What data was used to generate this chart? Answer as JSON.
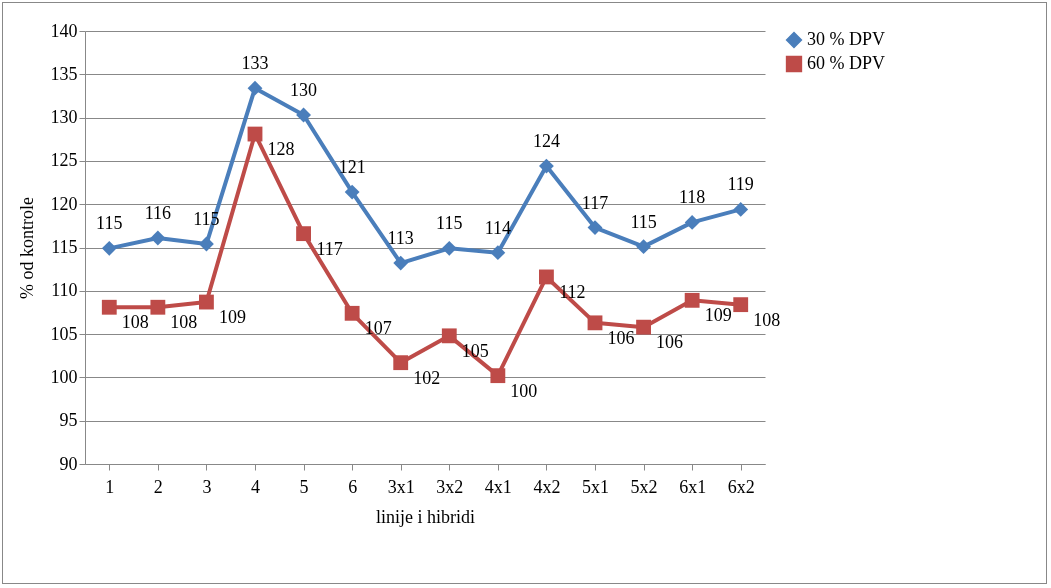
{
  "chart_data": {
    "type": "line",
    "xlabel": "linije i hibridi",
    "ylabel": "% od kontrole",
    "categories": [
      "1",
      "2",
      "3",
      "4",
      "5",
      "6",
      "3x1",
      "3x2",
      "4x1",
      "4x2",
      "5x1",
      "5x2",
      "6x1",
      "6x2"
    ],
    "series": [
      {
        "name": "30 % DPV",
        "color": "#4a7ebb",
        "marker": "diamond",
        "values": [
          114.9,
          116.1,
          115.4,
          133.4,
          130.3,
          121.4,
          113.2,
          114.9,
          114.4,
          124.4,
          117.3,
          115.1,
          117.9,
          119.4
        ],
        "value_labels": [
          "115",
          "116",
          "115",
          "133",
          "130",
          "121",
          "113",
          "115",
          "114",
          "124",
          "117",
          "115",
          "118",
          "119"
        ]
      },
      {
        "name": "60 %  DPV",
        "color": "#be4b48",
        "marker": "square",
        "values": [
          108.1,
          108.1,
          108.7,
          128.1,
          116.6,
          107.4,
          101.7,
          104.8,
          100.2,
          111.6,
          106.3,
          105.8,
          108.9,
          108.4
        ],
        "value_labels": [
          "108",
          "108",
          "109",
          "128",
          "117",
          "107",
          "102",
          "105",
          "100",
          "112",
          "106",
          "106",
          "109",
          "108"
        ]
      }
    ],
    "ylim": [
      90,
      140
    ],
    "yticks": [
      90,
      95,
      100,
      105,
      110,
      115,
      120,
      125,
      130,
      135,
      140
    ],
    "grid": "y",
    "legend": "right",
    "line_style": "solid"
  }
}
